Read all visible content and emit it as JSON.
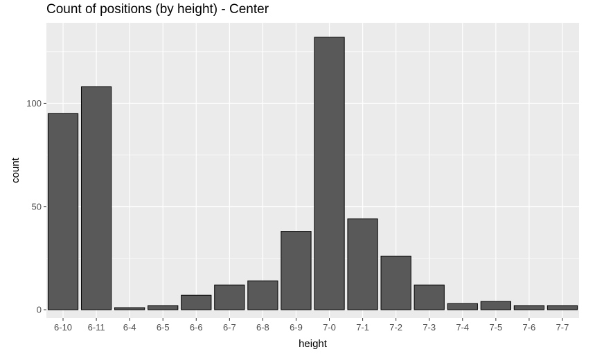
{
  "chart_data": {
    "type": "bar",
    "title": "Count of positions (by height) - Center",
    "xlabel": "height",
    "ylabel": "count",
    "categories": [
      "6-10",
      "6-11",
      "6-4",
      "6-5",
      "6-6",
      "6-7",
      "6-8",
      "6-9",
      "7-0",
      "7-1",
      "7-2",
      "7-3",
      "7-4",
      "7-5",
      "7-6",
      "7-7"
    ],
    "values": [
      95,
      108,
      1,
      2,
      7,
      12,
      14,
      38,
      132,
      44,
      26,
      12,
      3,
      4,
      2,
      2
    ],
    "ylim": [
      -4,
      139
    ],
    "yticks": [
      0,
      50,
      100
    ],
    "grid": true,
    "colors": {
      "panel": "#ebebeb",
      "grid_major": "#ffffff",
      "bar_fill": "#595959",
      "bar_stroke": "#000000",
      "tick_text": "#4d4d4d"
    }
  }
}
